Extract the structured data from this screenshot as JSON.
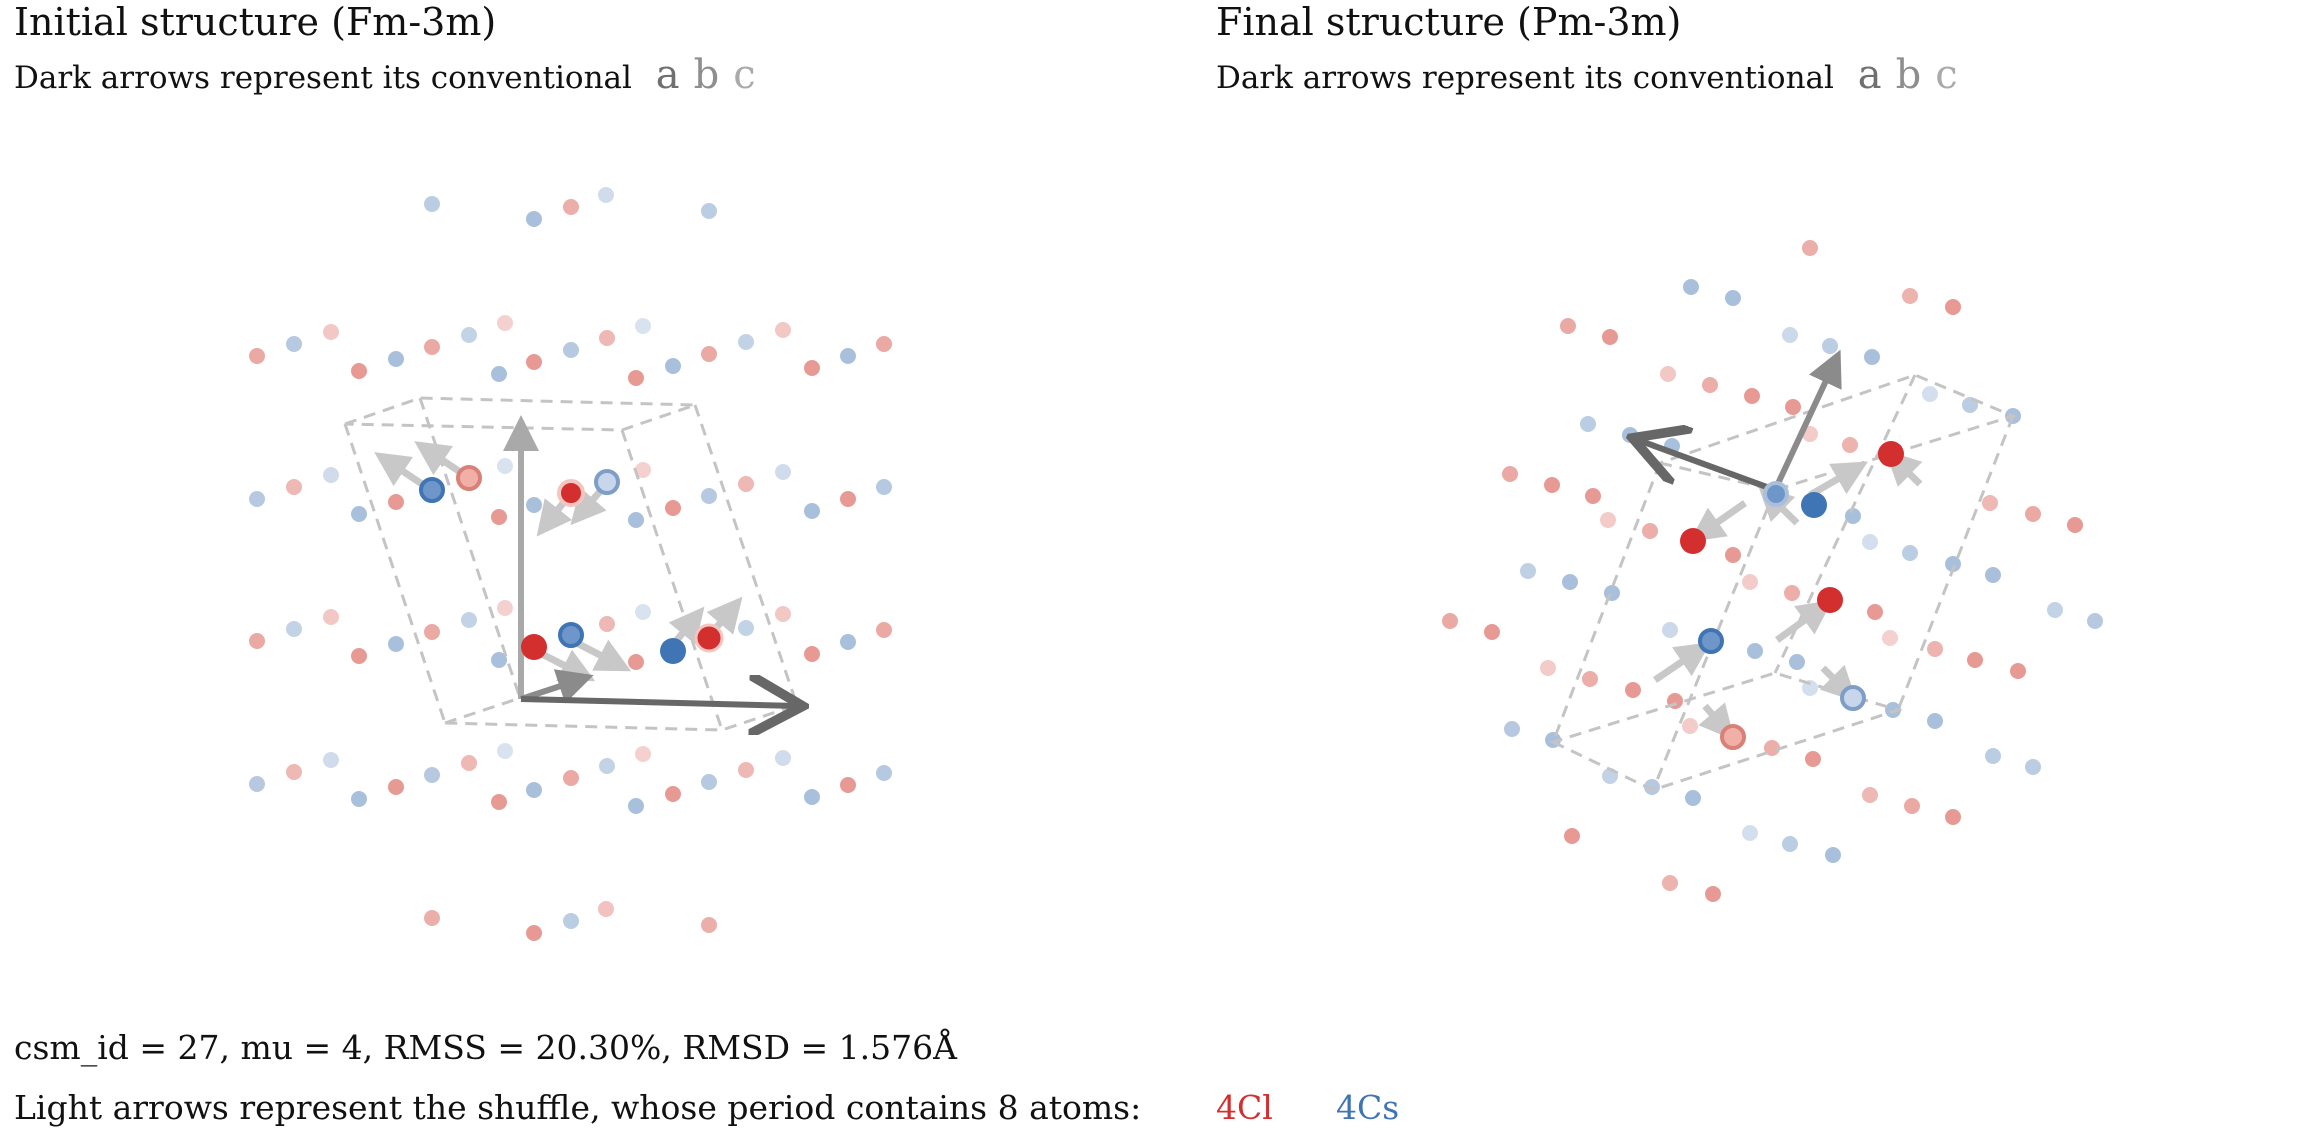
{
  "colors": {
    "cl": "#d32f2f",
    "cs": "#3f74b5",
    "cl_light": "#e79a94",
    "cs_light": "#a9c0dc",
    "cell": "#c4c4c4",
    "basis_dark": "#676767",
    "basis_mid": "#8b8b8b",
    "basis_light": "#a9a9a9",
    "shuffle": "#c8c8c8"
  },
  "left_panel": {
    "title": "Initial structure (Fm-3m)",
    "subtitle": "Dark arrows represent its conventional",
    "axes": {
      "a": "a",
      "b": "b",
      "c": "c"
    }
  },
  "right_panel": {
    "title": "Final structure (Pm-3m)",
    "subtitle": "Dark arrows represent its conventional",
    "axes": {
      "a": "a",
      "b": "b",
      "c": "c"
    }
  },
  "footer": {
    "stats": "csm_id = 27, mu = 4, RMSS = 20.30%, RMSD = 1.576Å",
    "shuffle_text": "Light arrows represent the shuffle, whose period contains 8 atoms:",
    "legend": [
      {
        "label": "4Cl",
        "color_key": "cl"
      },
      {
        "label": "4Cs",
        "color_key": "cs"
      }
    ]
  }
}
